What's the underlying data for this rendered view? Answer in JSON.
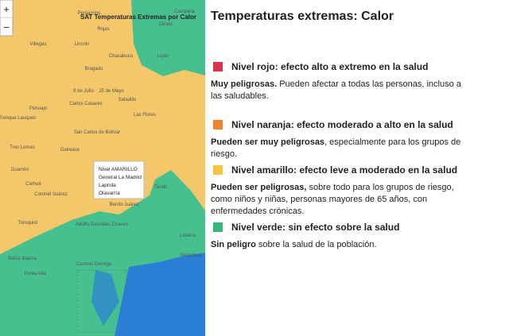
{
  "map": {
    "title": "SAT Temperaturas Extremas por Calor",
    "zoom_in": "+",
    "zoom_out": "−",
    "places": [
      "Campana",
      "Zárate",
      "Pergamino",
      "Rojas",
      "Villegas",
      "Lincoln",
      "Chacabuco",
      "Luján",
      "Bragado",
      "Pehuajó",
      "9 de Julio",
      "25 de Mayo",
      "Carlos Casares",
      "Trenque Lauquen",
      "Saladillo",
      "Las Flores",
      "San Carlos de Bolívar",
      "Tres Lomas",
      "Daireaux",
      "Guaminí",
      "Azul",
      "Carhué",
      "Tandil",
      "Coronel Suárez",
      "Benito Juárez",
      "Tornquist",
      "Adolfo Gonzales Chaves",
      "Lobería",
      "Necochea",
      "Bahía Blanca",
      "Coronel Dorrego",
      "Punta Alta"
    ],
    "popup": [
      "Nivel AMARILLO",
      "General La Madrid",
      "Laprida",
      "Olavarría"
    ]
  },
  "legend": {
    "title": "Temperaturas extremas: Calor",
    "items": [
      {
        "color": "#d9344a",
        "heading": "Nivel rojo: efecto alto a extremo en la salud",
        "bold": "Muy peligrosas.",
        "text": " Pueden afectar a todas las personas, incluso a las saludables."
      },
      {
        "color": "#f0852d",
        "heading": "Nivel naranja: efecto moderado a alto en la salud",
        "bold": "Pueden ser muy peligrosas",
        "text": ", especialmente para los grupos de riesgo."
      },
      {
        "color": "#f6c542",
        "heading": "Nivel amarillo: efecto leve a moderado en la salud",
        "bold": "Pueden ser peligrosas,",
        "text": " sobre todo para los grupos de riesgo, como niños y niñas, personas mayores de 65 años, con enfermedades crónicas."
      },
      {
        "color": "#35b779",
        "heading": "Nivel verde: sin efecto sobre la salud",
        "bold": "Sin peligro",
        "text": " sobre la salud de la población."
      }
    ]
  }
}
